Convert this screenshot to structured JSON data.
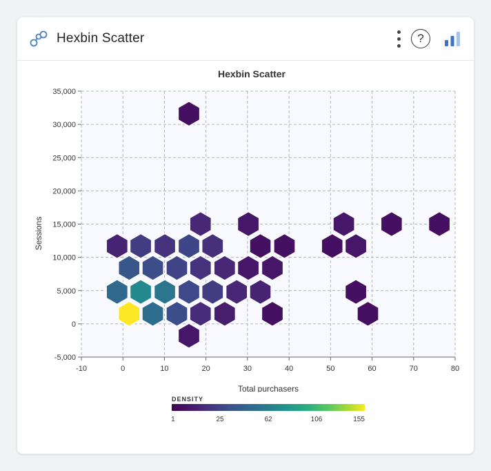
{
  "header": {
    "title": "Hexbin Scatter",
    "help_label": "?"
  },
  "colors": {
    "accent": "#4a7fc1",
    "plot_bg": "#f8faff",
    "grid": "#b0b4bc",
    "hex_stroke": "#ffffff"
  },
  "chart_data": {
    "type": "hexbin",
    "title": "Hexbin Scatter",
    "xlabel": "Total purchasers",
    "ylabel": "Sessions",
    "xlim": [
      -10,
      80
    ],
    "ylim": [
      -5000,
      35000
    ],
    "xticks": [
      -10,
      0,
      10,
      20,
      30,
      40,
      50,
      60,
      70,
      80
    ],
    "xtick_labels": [
      "-10",
      "0",
      "10",
      "20",
      "30",
      "40",
      "50",
      "60",
      "70",
      "80"
    ],
    "yticks": [
      -5000,
      0,
      5000,
      10000,
      15000,
      20000,
      25000,
      30000,
      35000
    ],
    "ytick_labels": [
      "-5,000",
      "0",
      "5,000",
      "10,000",
      "15,000",
      "20,000",
      "25,000",
      "30,000",
      "35,000"
    ],
    "grid": true,
    "color_scale": "viridis",
    "legend": {
      "title": "DENSITY",
      "ticks": [
        1,
        25,
        62,
        106,
        155
      ],
      "tick_labels": [
        "1",
        "25",
        "62",
        "106",
        "155"
      ],
      "placement": "bottom-center"
    },
    "bins": [
      {
        "x": 15.9,
        "y": 31600,
        "density": 2
      },
      {
        "x": 18.7,
        "y": 15000,
        "density": 6
      },
      {
        "x": 30.2,
        "y": 15000,
        "density": 3
      },
      {
        "x": 53.2,
        "y": 15000,
        "density": 3
      },
      {
        "x": 64.7,
        "y": 15000,
        "density": 2
      },
      {
        "x": 76.2,
        "y": 15000,
        "density": 2
      },
      {
        "x": -1.4,
        "y": 11700,
        "density": 5
      },
      {
        "x": 4.3,
        "y": 11700,
        "density": 12
      },
      {
        "x": 10.1,
        "y": 11700,
        "density": 9
      },
      {
        "x": 15.9,
        "y": 11700,
        "density": 15
      },
      {
        "x": 21.6,
        "y": 11700,
        "density": 8
      },
      {
        "x": 33.1,
        "y": 11700,
        "density": 2
      },
      {
        "x": 38.9,
        "y": 11700,
        "density": 2
      },
      {
        "x": 50.4,
        "y": 11700,
        "density": 2
      },
      {
        "x": 56.1,
        "y": 11700,
        "density": 3
      },
      {
        "x": 1.5,
        "y": 8400,
        "density": 22
      },
      {
        "x": 7.2,
        "y": 8400,
        "density": 18
      },
      {
        "x": 13.0,
        "y": 8400,
        "density": 14
      },
      {
        "x": 18.7,
        "y": 8400,
        "density": 9
      },
      {
        "x": 24.5,
        "y": 8400,
        "density": 6
      },
      {
        "x": 30.2,
        "y": 8400,
        "density": 3
      },
      {
        "x": 36.0,
        "y": 8400,
        "density": 3
      },
      {
        "x": -1.4,
        "y": 4800,
        "density": 32
      },
      {
        "x": 4.3,
        "y": 4800,
        "density": 55
      },
      {
        "x": 10.1,
        "y": 4800,
        "density": 40
      },
      {
        "x": 15.9,
        "y": 4800,
        "density": 16
      },
      {
        "x": 21.6,
        "y": 4800,
        "density": 12
      },
      {
        "x": 27.4,
        "y": 4800,
        "density": 6
      },
      {
        "x": 33.1,
        "y": 4800,
        "density": 5
      },
      {
        "x": 56.1,
        "y": 4800,
        "density": 2
      },
      {
        "x": 1.5,
        "y": 1500,
        "density": 155
      },
      {
        "x": 7.2,
        "y": 1500,
        "density": 35
      },
      {
        "x": 13.0,
        "y": 1500,
        "density": 18
      },
      {
        "x": 18.7,
        "y": 1500,
        "density": 7
      },
      {
        "x": 24.5,
        "y": 1500,
        "density": 4
      },
      {
        "x": 36.0,
        "y": 1500,
        "density": 2
      },
      {
        "x": 59.0,
        "y": 1500,
        "density": 2
      },
      {
        "x": 15.9,
        "y": -1800,
        "density": 3
      }
    ]
  }
}
